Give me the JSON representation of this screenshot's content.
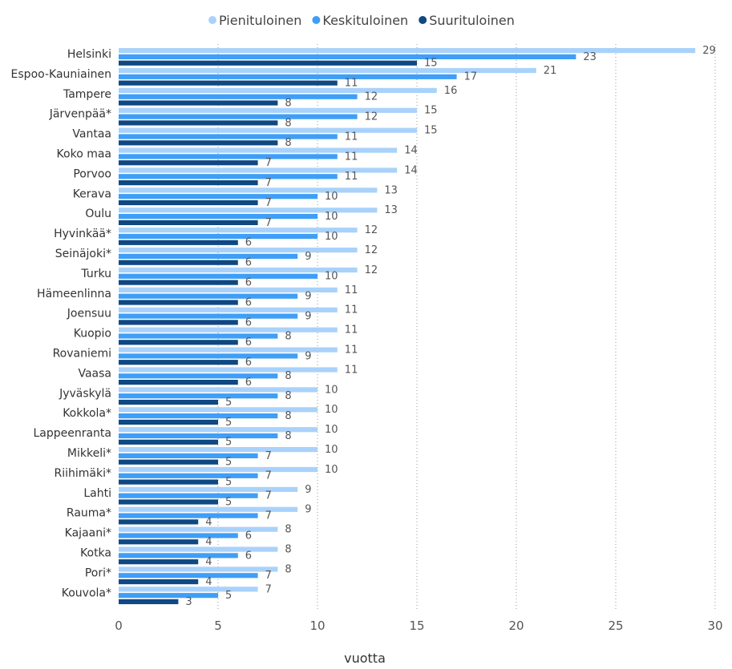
{
  "chart_data": {
    "type": "bar",
    "orientation": "horizontal",
    "xlabel": "vuotta",
    "xlim": [
      0,
      30
    ],
    "xticks": [
      0,
      5,
      10,
      15,
      20,
      25,
      30
    ],
    "grid": "vertical-dotted",
    "legend_position": "top-center",
    "categories": [
      "Helsinki",
      "Espoo-Kauniainen",
      "Tampere",
      "Järvenpää*",
      "Vantaa",
      "Koko maa",
      "Porvoo",
      "Kerava",
      "Oulu",
      "Hyvinkää*",
      "Seinäjoki*",
      "Turku",
      "Hämeenlinna",
      "Joensuu",
      "Kuopio",
      "Rovaniemi",
      "Vaasa",
      "Jyväskylä",
      "Kokkola*",
      "Lappeenranta",
      "Mikkeli*",
      "Riihimäki*",
      "Lahti",
      "Rauma*",
      "Kajaani*",
      "Kotka",
      "Pori*",
      "Kouvola*"
    ],
    "series": [
      {
        "name": "Pienituloinen",
        "color": "#a9d2fb",
        "values": [
          29,
          21,
          16,
          15,
          15,
          14,
          14,
          13,
          13,
          12,
          12,
          12,
          11,
          11,
          11,
          11,
          11,
          10,
          10,
          10,
          10,
          10,
          9,
          9,
          8,
          8,
          8,
          7
        ]
      },
      {
        "name": "Keskituloinen",
        "color": "#3f9ef7",
        "values": [
          23,
          17,
          12,
          12,
          11,
          11,
          11,
          10,
          10,
          10,
          9,
          10,
          9,
          9,
          8,
          9,
          8,
          8,
          8,
          8,
          7,
          7,
          7,
          7,
          6,
          6,
          7,
          5
        ]
      },
      {
        "name": "Suurituloinen",
        "color": "#0f4882",
        "values": [
          15,
          11,
          8,
          8,
          8,
          7,
          7,
          7,
          7,
          6,
          6,
          6,
          6,
          6,
          6,
          6,
          6,
          5,
          5,
          5,
          5,
          5,
          5,
          4,
          4,
          4,
          4,
          3
        ]
      }
    ]
  }
}
